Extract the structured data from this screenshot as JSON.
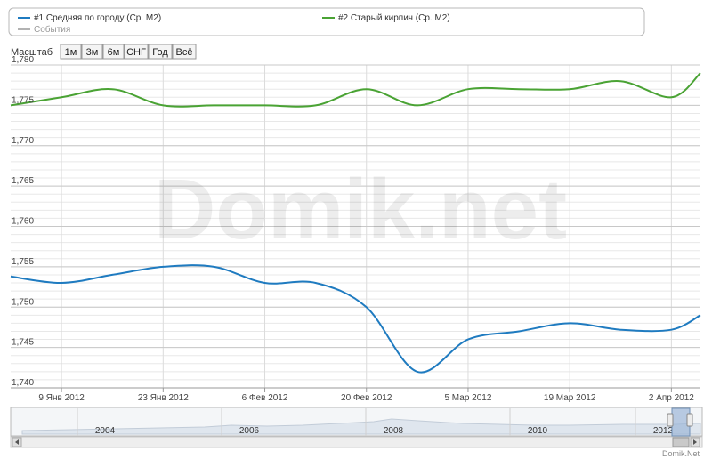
{
  "watermark": "Domik.net",
  "credit": "Domik.Net",
  "legend": {
    "items": [
      {
        "label": "#1 Средняя по городу (Ср. М2)",
        "color": "#1f7bc0"
      },
      {
        "label": "#2 Старый кирпич (Ср. М2)",
        "color": "#4aa334"
      },
      {
        "label": "События",
        "color": "#999999"
      }
    ]
  },
  "zoom": {
    "label": "Масштаб",
    "buttons": [
      "1м",
      "3м",
      "6м",
      "СНГ",
      "Год",
      "Всё"
    ]
  },
  "navigator": {
    "years": [
      "2004",
      "2006",
      "2008",
      "2010",
      "2012"
    ]
  },
  "chart_data": {
    "type": "line",
    "title": "",
    "xlabel": "",
    "ylabel": "",
    "ylim": [
      1.74,
      1.78
    ],
    "yticks": [
      "1,740",
      "1,745",
      "1,750",
      "1,755",
      "1,760",
      "1,765",
      "1,770",
      "1,775",
      "1,780"
    ],
    "ytick_values": [
      1.74,
      1.745,
      1.75,
      1.755,
      1.76,
      1.765,
      1.77,
      1.775,
      1.78
    ],
    "xticks": [
      "9 Янв 2012",
      "23 Янв 2012",
      "6 Фев 2012",
      "20 Фев 2012",
      "5 Мар 2012",
      "19 Мар 2012",
      "2 Апр 2012"
    ],
    "xtick_dates": [
      "2012-01-09",
      "2012-01-23",
      "2012-02-06",
      "2012-02-20",
      "2012-03-05",
      "2012-03-19",
      "2012-04-02"
    ],
    "xlim": [
      "2012-01-02",
      "2012-04-06"
    ],
    "grid": true,
    "series": [
      {
        "name": "#1 Средняя по городу (Ср. М2)",
        "color": "#1f7bc0",
        "points": [
          [
            "2012-01-02",
            1.7538
          ],
          [
            "2012-01-09",
            1.753
          ],
          [
            "2012-01-16",
            1.754
          ],
          [
            "2012-01-23",
            1.755
          ],
          [
            "2012-01-30",
            1.755
          ],
          [
            "2012-02-06",
            1.753
          ],
          [
            "2012-02-13",
            1.753
          ],
          [
            "2012-02-20",
            1.75
          ],
          [
            "2012-02-27",
            1.742
          ],
          [
            "2012-03-05",
            1.746
          ],
          [
            "2012-03-12",
            1.747
          ],
          [
            "2012-03-19",
            1.748
          ],
          [
            "2012-03-26",
            1.7472
          ],
          [
            "2012-04-02",
            1.7472
          ],
          [
            "2012-04-06",
            1.749
          ]
        ]
      },
      {
        "name": "#2 Старый кирпич (Ср. М2)",
        "color": "#4aa334",
        "points": [
          [
            "2012-01-02",
            1.775
          ],
          [
            "2012-01-09",
            1.776
          ],
          [
            "2012-01-16",
            1.777
          ],
          [
            "2012-01-23",
            1.775
          ],
          [
            "2012-01-30",
            1.775
          ],
          [
            "2012-02-06",
            1.775
          ],
          [
            "2012-02-13",
            1.775
          ],
          [
            "2012-02-20",
            1.777
          ],
          [
            "2012-02-27",
            1.775
          ],
          [
            "2012-03-05",
            1.777
          ],
          [
            "2012-03-12",
            1.777
          ],
          [
            "2012-03-19",
            1.777
          ],
          [
            "2012-03-26",
            1.778
          ],
          [
            "2012-04-02",
            1.776
          ],
          [
            "2012-04-06",
            1.779
          ]
        ]
      }
    ]
  }
}
